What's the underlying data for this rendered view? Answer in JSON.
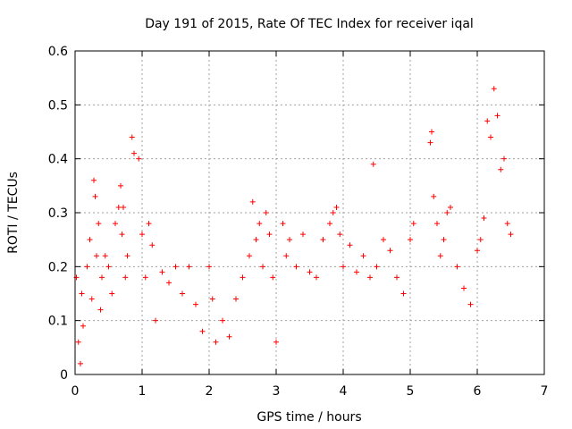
{
  "chart_data": {
    "type": "scatter",
    "title": "Day 191 of 2015, Rate Of TEC Index for receiver iqal",
    "xlabel": "GPS time / hours",
    "ylabel": "ROTI / TECUs",
    "xlim": [
      0,
      7
    ],
    "ylim": [
      0,
      0.6
    ],
    "xticks": [
      0,
      1,
      2,
      3,
      4,
      5,
      6,
      7
    ],
    "yticks": [
      0,
      0.1,
      0.2,
      0.3,
      0.4,
      0.5,
      0.6
    ],
    "xtick_labels": [
      "0",
      "1",
      "2",
      "3",
      "4",
      "5",
      "6",
      "7"
    ],
    "ytick_labels": [
      "0",
      "0.1",
      "0.2",
      "0.3",
      "0.4",
      "0.5",
      "0.6"
    ],
    "grid": true,
    "marker": "+",
    "color": "#ff0000",
    "series": [
      {
        "name": "ROTI",
        "x": [
          0.02,
          0.05,
          0.08,
          0.1,
          0.12,
          0.18,
          0.22,
          0.25,
          0.28,
          0.3,
          0.32,
          0.35,
          0.38,
          0.4,
          0.45,
          0.5,
          0.55,
          0.6,
          0.65,
          0.68,
          0.7,
          0.72,
          0.75,
          0.78,
          0.85,
          0.88,
          0.95,
          1.0,
          1.05,
          1.1,
          1.15,
          1.2,
          1.3,
          1.4,
          1.5,
          1.6,
          1.7,
          1.8,
          1.9,
          2.0,
          2.05,
          2.1,
          2.2,
          2.3,
          2.4,
          2.5,
          2.6,
          2.65,
          2.7,
          2.75,
          2.8,
          2.85,
          2.9,
          2.95,
          3.0,
          3.1,
          3.15,
          3.2,
          3.3,
          3.4,
          3.5,
          3.6,
          3.7,
          3.8,
          3.85,
          3.9,
          3.95,
          4.0,
          4.1,
          4.2,
          4.3,
          4.4,
          4.45,
          4.5,
          4.6,
          4.7,
          4.8,
          4.9,
          5.0,
          5.05,
          5.3,
          5.32,
          5.35,
          5.4,
          5.45,
          5.5,
          5.55,
          5.6,
          5.7,
          5.8,
          5.9,
          6.0,
          6.05,
          6.1,
          6.15,
          6.2,
          6.25,
          6.3,
          6.35,
          6.4,
          6.45,
          6.5
        ],
        "values": [
          0.18,
          0.06,
          0.02,
          0.15,
          0.09,
          0.2,
          0.25,
          0.14,
          0.36,
          0.33,
          0.22,
          0.28,
          0.12,
          0.18,
          0.22,
          0.2,
          0.15,
          0.28,
          0.31,
          0.35,
          0.26,
          0.31,
          0.18,
          0.22,
          0.44,
          0.41,
          0.4,
          0.26,
          0.18,
          0.28,
          0.24,
          0.1,
          0.19,
          0.17,
          0.2,
          0.15,
          0.2,
          0.13,
          0.08,
          0.2,
          0.14,
          0.06,
          0.1,
          0.07,
          0.14,
          0.18,
          0.22,
          0.32,
          0.25,
          0.28,
          0.2,
          0.3,
          0.26,
          0.18,
          0.06,
          0.28,
          0.22,
          0.25,
          0.2,
          0.26,
          0.19,
          0.18,
          0.25,
          0.28,
          0.3,
          0.31,
          0.26,
          0.2,
          0.24,
          0.19,
          0.22,
          0.18,
          0.39,
          0.2,
          0.25,
          0.23,
          0.18,
          0.15,
          0.25,
          0.28,
          0.43,
          0.45,
          0.33,
          0.28,
          0.22,
          0.25,
          0.3,
          0.31,
          0.2,
          0.16,
          0.13,
          0.23,
          0.25,
          0.29,
          0.47,
          0.44,
          0.53,
          0.48,
          0.38,
          0.4,
          0.28,
          0.26
        ]
      }
    ]
  }
}
